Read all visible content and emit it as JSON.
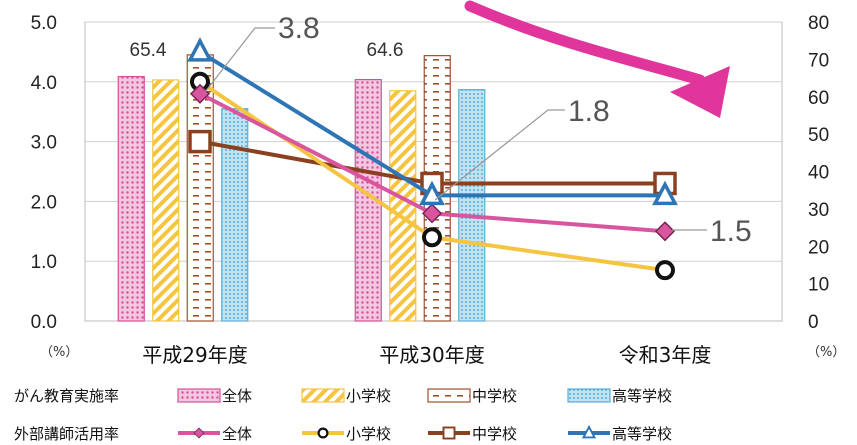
{
  "chart_data": {
    "type": "bar",
    "categories": [
      "平成29年度",
      "平成30年度",
      "令和3年度"
    ],
    "left_axis": {
      "ylim": [
        0,
        5.0
      ],
      "ticks": [
        "0.0",
        "1.0",
        "2.0",
        "3.0",
        "4.0",
        "5.0"
      ],
      "unit": "（%）"
    },
    "right_axis": {
      "ylim": [
        0,
        80
      ],
      "ticks": [
        "0",
        "10",
        "20",
        "30",
        "40",
        "50",
        "60",
        "70",
        "80"
      ],
      "unit": "（%）"
    },
    "bar_group_label": "がん教育実施率",
    "line_group_label": "外部講師活用率",
    "bar_series": [
      {
        "name": "全体",
        "values": [
          65.4,
          64.6,
          null
        ],
        "color": "#d94f9a",
        "pattern": "dots"
      },
      {
        "name": "小学校",
        "values": [
          64.5,
          61.6,
          null
        ],
        "color": "#f5c542",
        "pattern": "diag"
      },
      {
        "name": "中学校",
        "values": [
          71.2,
          71.0,
          null
        ],
        "color": "#a05030",
        "pattern": "dash"
      },
      {
        "name": "高等学校",
        "values": [
          56.8,
          61.9,
          null
        ],
        "color": "#5ab0d6",
        "pattern": "grid"
      }
    ],
    "line_series": [
      {
        "name": "全体",
        "values": [
          3.8,
          1.8,
          1.5
        ],
        "color": "#d9569e",
        "marker": "diamond"
      },
      {
        "name": "小学校",
        "values": [
          4.0,
          1.4,
          0.85
        ],
        "color": "#f5c542",
        "marker": "circle"
      },
      {
        "name": "中学校",
        "values": [
          3.0,
          2.3,
          2.3
        ],
        "color": "#8b4020",
        "marker": "square"
      },
      {
        "name": "高等学校",
        "values": [
          4.5,
          2.1,
          2.1
        ],
        "color": "#2e75b6",
        "marker": "triangle"
      }
    ],
    "data_labels": [
      {
        "text": "65.4",
        "series": "bar:全体",
        "category": 0
      },
      {
        "text": "64.6",
        "series": "bar:全体",
        "category": 1
      },
      {
        "text": "3.8",
        "series": "line:全体",
        "category": 0
      },
      {
        "text": "1.8",
        "series": "line:全体",
        "category": 1
      },
      {
        "text": "1.5",
        "series": "line:全体",
        "category": 2
      }
    ],
    "arrow_color": "#e0359b"
  }
}
